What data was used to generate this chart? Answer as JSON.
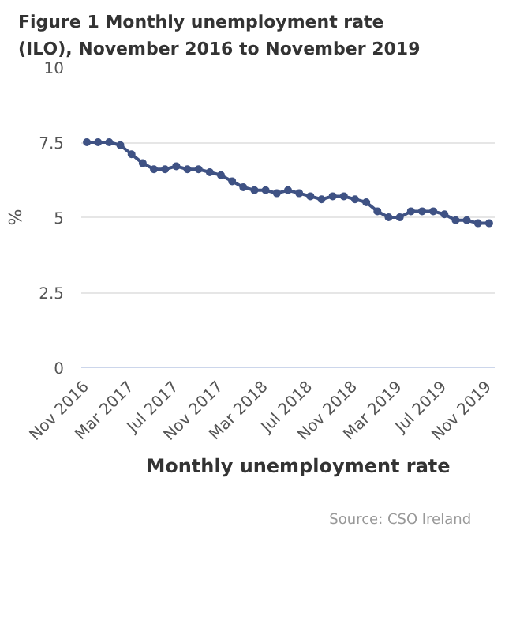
{
  "chart_data": {
    "type": "line",
    "title": "Figure 1 Monthly unemployment rate (ILO), November 2016 to November 2019",
    "ylabel": "%",
    "categories": [
      "Nov 2016",
      null,
      null,
      null,
      "Mar 2017",
      null,
      null,
      null,
      "Jul 2017",
      null,
      null,
      null,
      "Nov 2017",
      null,
      null,
      null,
      "Mar 2018",
      null,
      null,
      null,
      "Jul 2018",
      null,
      null,
      null,
      "Nov 2018",
      null,
      null,
      null,
      "Mar 2019",
      null,
      null,
      null,
      "Jul 2019",
      null,
      null,
      null,
      "Nov 2019"
    ],
    "series": [
      {
        "name": "Monthly unemployment rate",
        "color": "#3f5284",
        "values": [
          7.5,
          7.5,
          7.5,
          7.4,
          7.1,
          6.8,
          6.6,
          6.6,
          6.7,
          6.6,
          6.6,
          6.5,
          6.4,
          6.2,
          6.0,
          5.9,
          5.9,
          5.8,
          5.9,
          5.8,
          5.7,
          5.6,
          5.7,
          5.7,
          5.6,
          5.5,
          5.2,
          5.0,
          5.0,
          5.2,
          5.2,
          5.2,
          5.1,
          4.9,
          4.9,
          4.8,
          4.8
        ]
      }
    ],
    "ylim": [
      0,
      10
    ],
    "yticks": [
      0,
      2.5,
      5,
      7.5,
      10
    ],
    "grid": "y",
    "legend": "bottom",
    "marker": "circle",
    "line_style": "solid",
    "annotations": [
      "Source: CSO Ireland"
    ]
  }
}
